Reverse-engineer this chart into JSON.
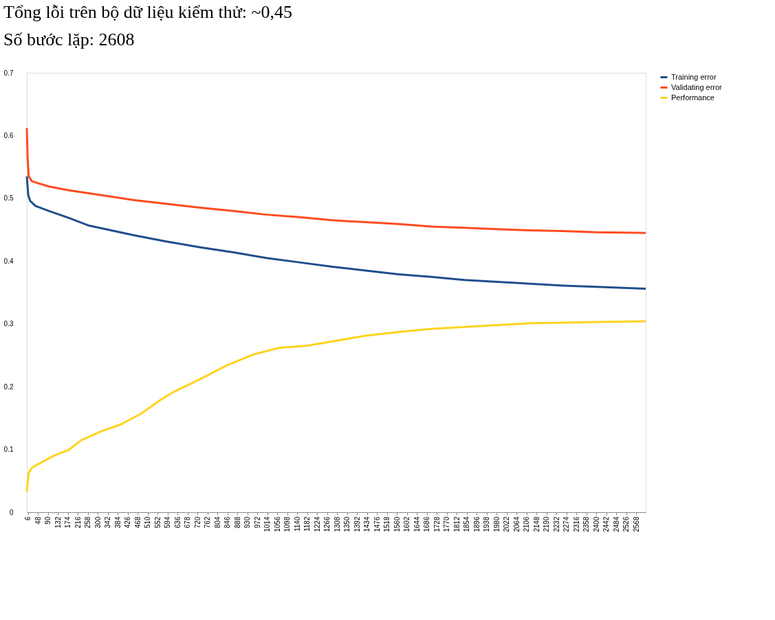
{
  "chart_data": {
    "type": "line",
    "title": "Tổng lỗi trên bộ dữ liệu kiểm thử: ~0,45",
    "subtitle": "Số bước lặp: 2608",
    "xlim": [
      1,
      2608
    ],
    "ylim": [
      0,
      0.7
    ],
    "xticks": [
      6,
      48,
      90,
      132,
      174,
      216,
      258,
      300,
      342,
      384,
      426,
      468,
      510,
      552,
      594,
      636,
      678,
      720,
      762,
      804,
      846,
      888,
      930,
      972,
      1014,
      1056,
      1098,
      1140,
      1182,
      1224,
      1266,
      1308,
      1350,
      1392,
      1434,
      1476,
      1518,
      1560,
      1602,
      1644,
      1686,
      1728,
      1770,
      1812,
      1854,
      1896,
      1938,
      1980,
      2022,
      2064,
      2106,
      2148,
      2190,
      2232,
      2274,
      2316,
      2358,
      2400,
      2442,
      2484,
      2526,
      2568
    ],
    "yticks": [
      0,
      0.1,
      0.2,
      0.3,
      0.4,
      0.5,
      0.6,
      0.7
    ],
    "grid": false,
    "legend": "right",
    "marker": "none",
    "line_style": "solid",
    "series": [
      {
        "name": "Training error",
        "color": "#1f4e8c",
        "x": [
          1,
          7,
          15,
          37,
          93,
          176,
          259,
          343,
          454,
          593,
          732,
          871,
          1010,
          1149,
          1288,
          1427,
          1566,
          1705,
          1843,
          1982,
          2121,
          2260,
          2399,
          2608
        ],
        "values": [
          0.535,
          0.505,
          0.496,
          0.488,
          0.48,
          0.469,
          0.457,
          0.45,
          0.441,
          0.431,
          0.422,
          0.414,
          0.405,
          0.398,
          0.391,
          0.385,
          0.379,
          0.375,
          0.37,
          0.367,
          0.364,
          0.361,
          0.359,
          0.356
        ]
      },
      {
        "name": "Validating error",
        "color": "#ff4b1f",
        "x": [
          1,
          4,
          9,
          23,
          93,
          176,
          315,
          454,
          593,
          732,
          871,
          1010,
          1149,
          1288,
          1427,
          1566,
          1705,
          1843,
          1982,
          2121,
          2260,
          2399,
          2608
        ],
        "values": [
          0.612,
          0.566,
          0.535,
          0.527,
          0.519,
          0.513,
          0.505,
          0.497,
          0.491,
          0.485,
          0.48,
          0.474,
          0.47,
          0.465,
          0.462,
          0.459,
          0.455,
          0.453,
          0.451,
          0.449,
          0.448,
          0.446,
          0.445
        ]
      },
      {
        "name": "Performance",
        "color": "#ffd320",
        "x": [
          1,
          9,
          23,
          65,
          120,
          176,
          232,
          315,
          398,
          482,
          565,
          621,
          732,
          843,
          954,
          1065,
          1177,
          1288,
          1427,
          1566,
          1705,
          1843,
          1982,
          2121,
          2260,
          2399,
          2608
        ],
        "values": [
          0.033,
          0.063,
          0.071,
          0.08,
          0.091,
          0.099,
          0.115,
          0.129,
          0.14,
          0.157,
          0.179,
          0.192,
          0.212,
          0.234,
          0.251,
          0.262,
          0.265,
          0.272,
          0.281,
          0.287,
          0.292,
          0.295,
          0.298,
          0.301,
          0.302,
          0.303,
          0.304
        ]
      }
    ]
  }
}
